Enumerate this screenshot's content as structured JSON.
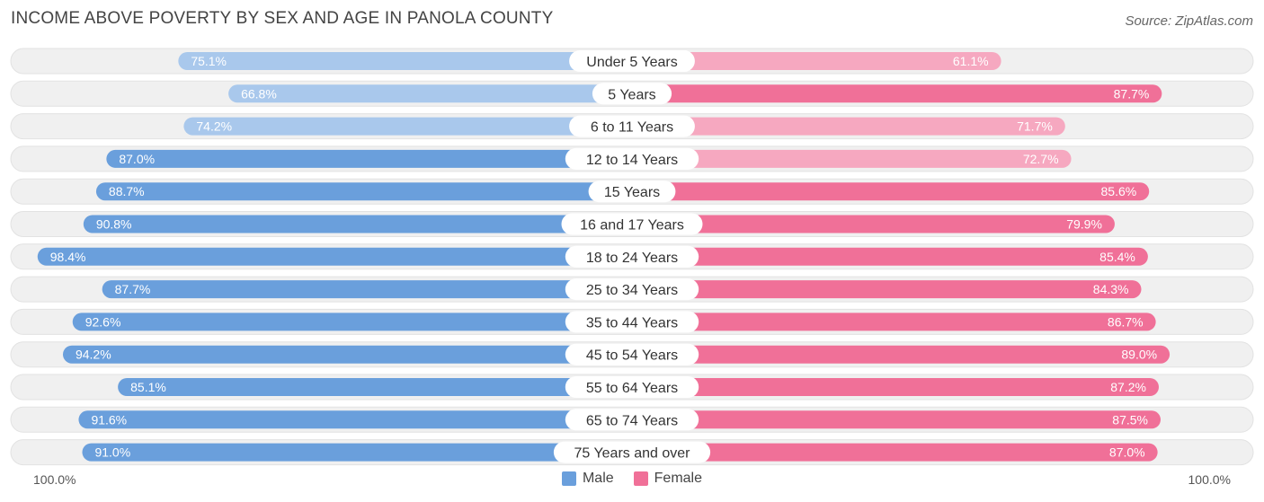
{
  "title": "INCOME ABOVE POVERTY BY SEX AND AGE IN PANOLA COUNTY",
  "source": "Source: ZipAtlas.com",
  "colors": {
    "male_strong": "#6a9fdc",
    "male_light": "#a9c8ec",
    "female_strong": "#f07098",
    "female_light": "#f6a8c0",
    "track": "#f0f0f0"
  },
  "axis": {
    "left_label": "100.0%",
    "right_label": "100.0%"
  },
  "legend": [
    {
      "label": "Male",
      "color": "#6a9fdc"
    },
    {
      "label": "Female",
      "color": "#f07098"
    }
  ],
  "chart_data": {
    "type": "bar",
    "orientation": "horizontal-diverging",
    "xlim": [
      0,
      100
    ],
    "categories": [
      "Under 5 Years",
      "5 Years",
      "6 to 11 Years",
      "12 to 14 Years",
      "15 Years",
      "16 and 17 Years",
      "18 to 24 Years",
      "25 to 34 Years",
      "35 to 44 Years",
      "45 to 54 Years",
      "55 to 64 Years",
      "65 to 74 Years",
      "75 Years and over"
    ],
    "series": [
      {
        "name": "Male",
        "values": [
          75.1,
          66.8,
          74.2,
          87.0,
          88.7,
          90.8,
          98.4,
          87.7,
          92.6,
          94.2,
          85.1,
          91.6,
          91.0
        ]
      },
      {
        "name": "Female",
        "values": [
          61.1,
          87.7,
          71.7,
          72.7,
          85.6,
          79.9,
          85.4,
          84.3,
          86.7,
          89.0,
          87.2,
          87.5,
          87.0
        ]
      }
    ]
  }
}
